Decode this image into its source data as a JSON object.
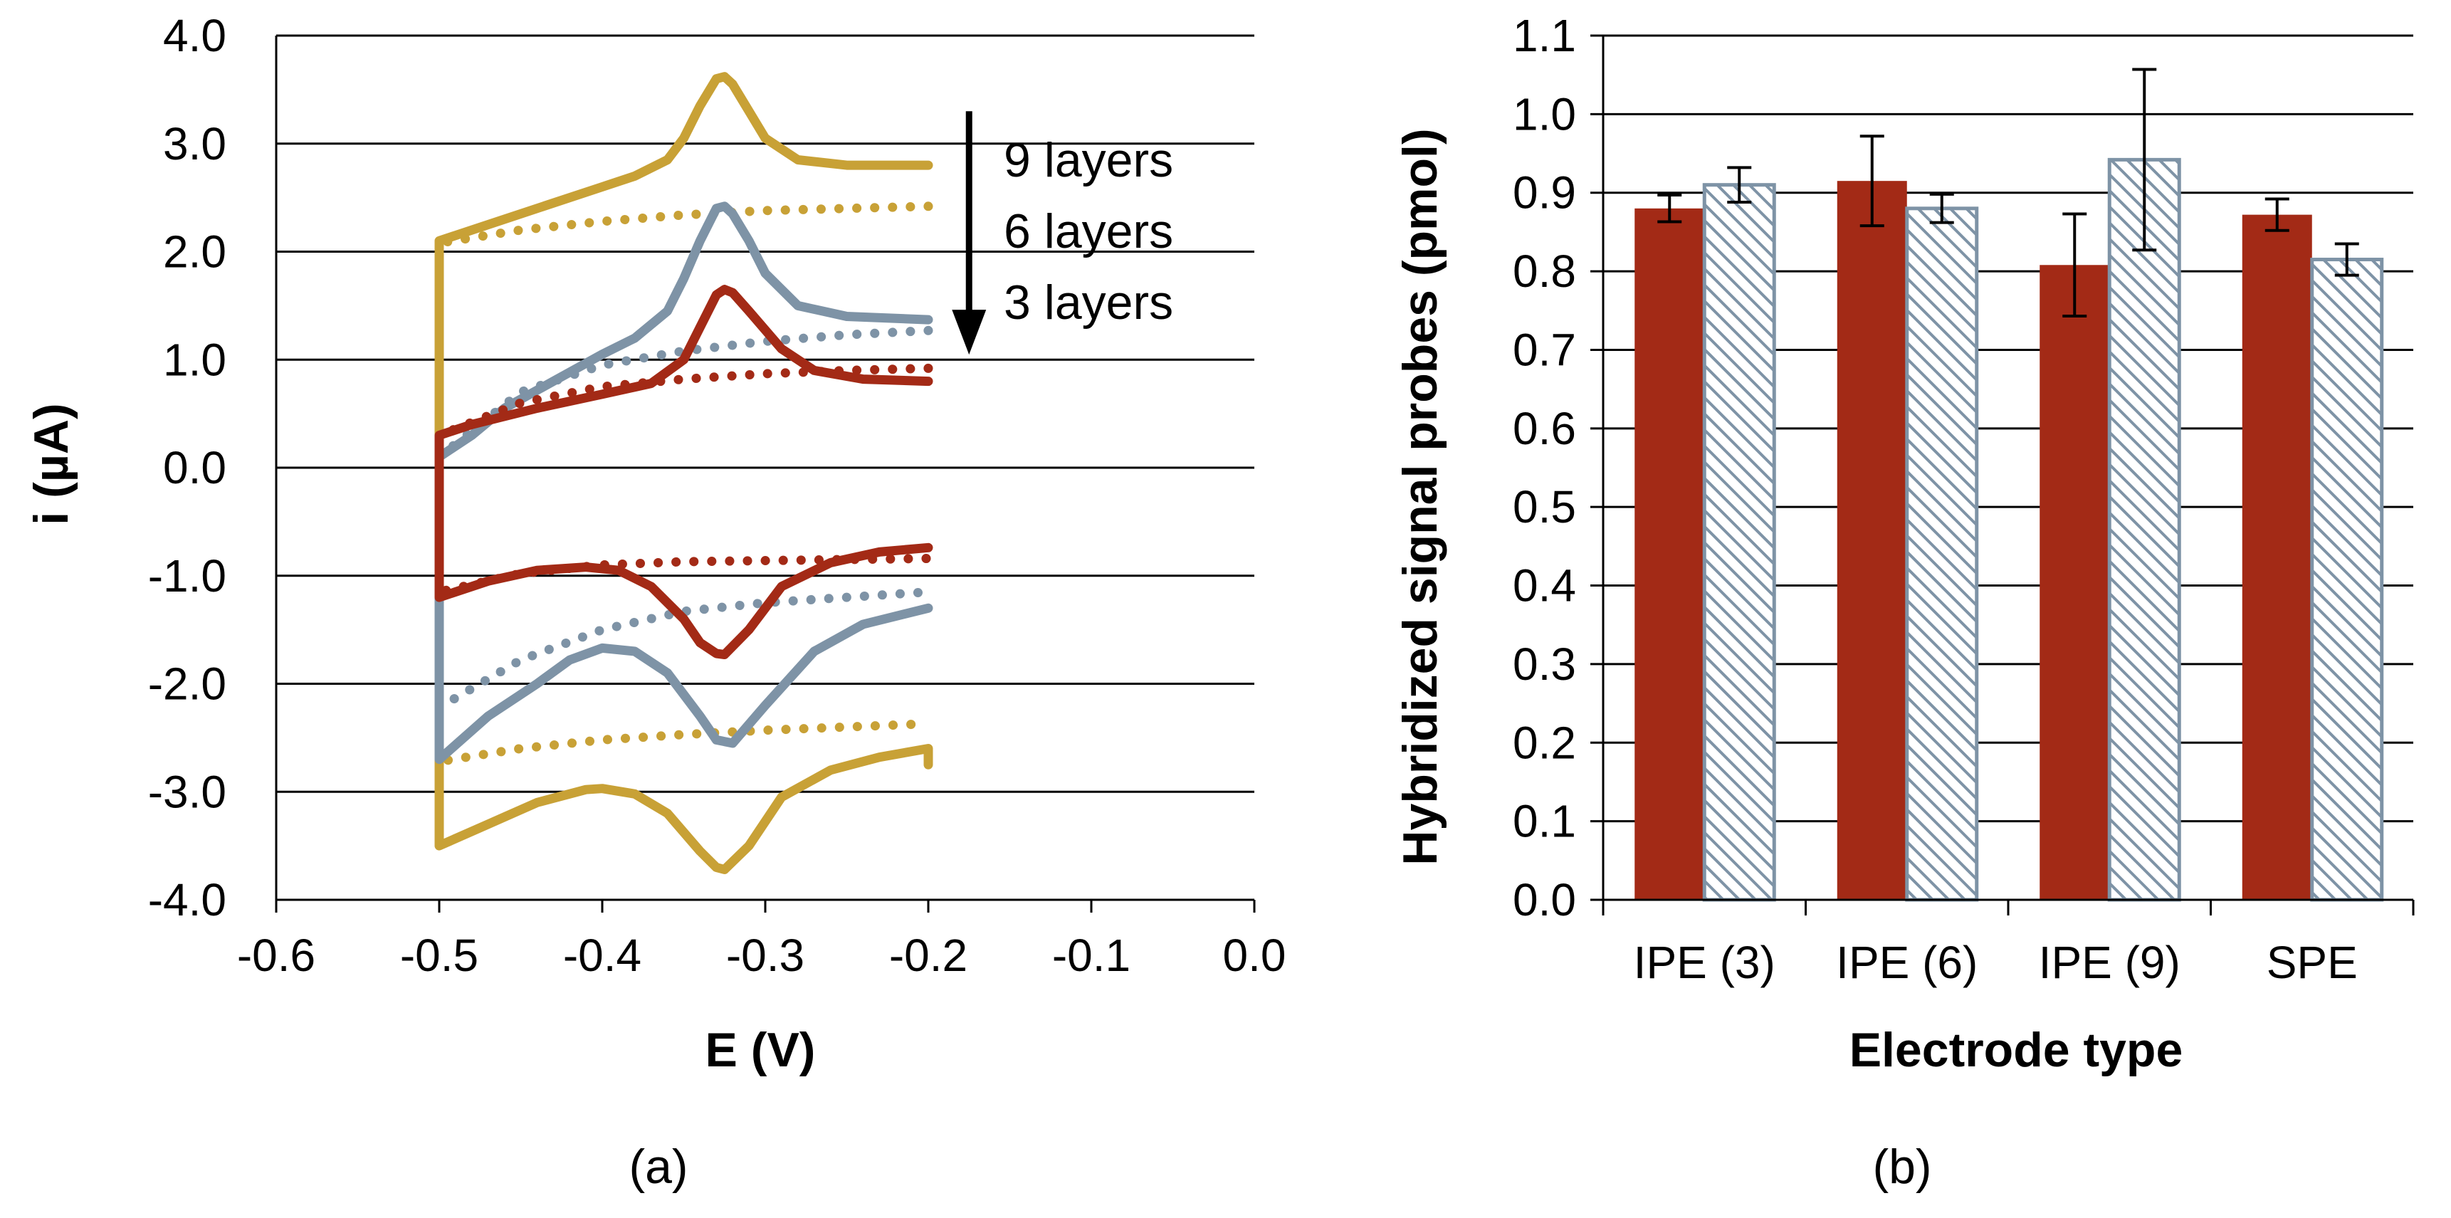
{
  "colors": {
    "gold": "#c8a136",
    "blue_grey": "#7e93a6",
    "red": "#a32a16",
    "grid": "#000000"
  },
  "chart_data": [
    {
      "type": "line",
      "panel_label": "(a)",
      "title": "",
      "xlabel": "E (V)",
      "ylabel": "i (µA)",
      "xlim": [
        -0.6,
        0.0
      ],
      "ylim": [
        -4.0,
        4.0
      ],
      "x_ticks": [
        -0.6,
        -0.5,
        -0.4,
        -0.3,
        -0.2,
        -0.1,
        0.0
      ],
      "x_tick_labels": [
        "-0.6",
        "-0.5",
        "-0.4",
        "-0.3",
        "-0.2",
        "-0.1",
        "0.0"
      ],
      "y_ticks": [
        -4,
        -3,
        -2,
        -1,
        0,
        1,
        2,
        3,
        4
      ],
      "y_tick_labels": [
        "-4.0",
        "-3.0",
        "-2.0",
        "-1.0",
        "0.0",
        "1.0",
        "2.0",
        "3.0",
        "4.0"
      ],
      "grid": "horizontal",
      "annotations": [
        "9 layers",
        "6 layers",
        "3 layers"
      ],
      "arrow": {
        "x": -0.175,
        "y_from": 3.3,
        "y_to": 1.1,
        "direction": "down"
      },
      "series": [
        {
          "name": "9 layers (solid)",
          "color": "gold",
          "style": "solid",
          "x": [
            -0.2,
            -0.25,
            -0.28,
            -0.3,
            -0.31,
            -0.32,
            -0.325,
            -0.33,
            -0.34,
            -0.35,
            -0.36,
            -0.38,
            -0.4,
            -0.43,
            -0.47,
            -0.5,
            -0.5,
            -0.5,
            -0.47,
            -0.44,
            -0.41,
            -0.4,
            -0.38,
            -0.36,
            -0.34,
            -0.33,
            -0.325,
            -0.31,
            -0.29,
            -0.26,
            -0.23,
            -0.2,
            -0.2
          ],
          "y": [
            2.8,
            2.8,
            2.85,
            3.05,
            3.3,
            3.55,
            3.62,
            3.6,
            3.35,
            3.05,
            2.85,
            2.7,
            2.6,
            2.45,
            2.25,
            2.1,
            0.4,
            -3.5,
            -3.3,
            -3.1,
            -2.98,
            -2.97,
            -3.02,
            -3.2,
            -3.55,
            -3.7,
            -3.72,
            -3.5,
            -3.05,
            -2.8,
            -2.68,
            -2.6,
            -2.75
          ]
        },
        {
          "name": "9 layers (dotted)",
          "color": "gold",
          "style": "dotted",
          "x": [
            -0.2,
            -0.25,
            -0.3,
            -0.35,
            -0.4,
            -0.45,
            -0.5,
            -0.5,
            -0.45,
            -0.4,
            -0.35,
            -0.3,
            -0.25,
            -0.2
          ],
          "y": [
            2.42,
            2.4,
            2.38,
            2.34,
            2.28,
            2.2,
            2.08,
            -2.72,
            -2.6,
            -2.52,
            -2.47,
            -2.43,
            -2.4,
            -2.37
          ]
        },
        {
          "name": "6 layers (solid)",
          "color": "blue_grey",
          "style": "solid",
          "x": [
            -0.2,
            -0.25,
            -0.28,
            -0.3,
            -0.31,
            -0.32,
            -0.325,
            -0.33,
            -0.34,
            -0.35,
            -0.36,
            -0.38,
            -0.4,
            -0.43,
            -0.46,
            -0.48,
            -0.5,
            -0.5,
            -0.5,
            -0.47,
            -0.44,
            -0.42,
            -0.4,
            -0.38,
            -0.36,
            -0.34,
            -0.33,
            -0.32,
            -0.3,
            -0.27,
            -0.24,
            -0.2
          ],
          "y": [
            1.37,
            1.4,
            1.5,
            1.8,
            2.1,
            2.35,
            2.42,
            2.4,
            2.1,
            1.75,
            1.45,
            1.2,
            1.05,
            0.8,
            0.55,
            0.3,
            0.1,
            -1.2,
            -2.7,
            -2.3,
            -2.0,
            -1.78,
            -1.67,
            -1.7,
            -1.9,
            -2.3,
            -2.52,
            -2.55,
            -2.2,
            -1.7,
            -1.45,
            -1.3
          ]
        },
        {
          "name": "6 layers (dotted)",
          "color": "blue_grey",
          "style": "dotted",
          "x": [
            -0.2,
            -0.25,
            -0.3,
            -0.35,
            -0.4,
            -0.45,
            -0.5,
            -0.5,
            -0.45,
            -0.4,
            -0.35,
            -0.3,
            -0.25,
            -0.2
          ],
          "y": [
            1.27,
            1.23,
            1.17,
            1.08,
            0.95,
            0.7,
            0.1,
            -2.22,
            -1.78,
            -1.5,
            -1.33,
            -1.25,
            -1.2,
            -1.15
          ]
        },
        {
          "name": "3 layers (solid)",
          "color": "red",
          "style": "solid",
          "x": [
            -0.2,
            -0.24,
            -0.27,
            -0.29,
            -0.31,
            -0.32,
            -0.325,
            -0.33,
            -0.34,
            -0.35,
            -0.37,
            -0.4,
            -0.44,
            -0.48,
            -0.5,
            -0.5,
            -0.5,
            -0.47,
            -0.44,
            -0.41,
            -0.39,
            -0.37,
            -0.35,
            -0.34,
            -0.33,
            -0.325,
            -0.31,
            -0.29,
            -0.26,
            -0.23,
            -0.2
          ],
          "y": [
            0.8,
            0.82,
            0.9,
            1.1,
            1.45,
            1.62,
            1.65,
            1.6,
            1.3,
            1.0,
            0.78,
            0.68,
            0.55,
            0.4,
            0.3,
            -0.3,
            -1.2,
            -1.05,
            -0.95,
            -0.92,
            -0.95,
            -1.1,
            -1.4,
            -1.62,
            -1.72,
            -1.73,
            -1.5,
            -1.1,
            -0.88,
            -0.78,
            -0.74
          ]
        },
        {
          "name": "3 layers (dotted)",
          "color": "red",
          "style": "dotted",
          "x": [
            -0.2,
            -0.25,
            -0.3,
            -0.35,
            -0.4,
            -0.45,
            -0.5,
            -0.5,
            -0.45,
            -0.4,
            -0.35,
            -0.3,
            -0.25,
            -0.2
          ],
          "y": [
            0.92,
            0.9,
            0.87,
            0.82,
            0.75,
            0.6,
            0.3,
            -1.15,
            -0.98,
            -0.9,
            -0.87,
            -0.86,
            -0.85,
            -0.84
          ]
        }
      ]
    },
    {
      "type": "bar",
      "panel_label": "(b)",
      "title": "",
      "xlabel": "Electrode type",
      "ylabel": "Hybridized signal probes (pmol)",
      "ylim": [
        0.0,
        1.1
      ],
      "y_ticks": [
        0.0,
        0.1,
        0.2,
        0.3,
        0.4,
        0.5,
        0.6,
        0.7,
        0.8,
        0.9,
        1.0,
        1.1
      ],
      "y_tick_labels": [
        "0.0",
        "0.1",
        "0.2",
        "0.3",
        "0.4",
        "0.5",
        "0.6",
        "0.7",
        "0.8",
        "0.9",
        "1.0",
        "1.1"
      ],
      "grid": "horizontal",
      "categories": [
        "IPE (3)",
        "IPE (6)",
        "IPE (9)",
        "SPE"
      ],
      "series": [
        {
          "name": "solid red",
          "color": "red",
          "pattern": "solid",
          "values": [
            0.88,
            0.915,
            0.808,
            0.872
          ],
          "errors": [
            0.017,
            0.057,
            0.065,
            0.02
          ]
        },
        {
          "name": "hatched",
          "color": "blue_grey",
          "pattern": "hatched",
          "values": [
            0.91,
            0.88,
            0.942,
            0.815
          ],
          "errors": [
            0.022,
            0.018,
            0.115,
            0.02
          ]
        }
      ]
    }
  ]
}
